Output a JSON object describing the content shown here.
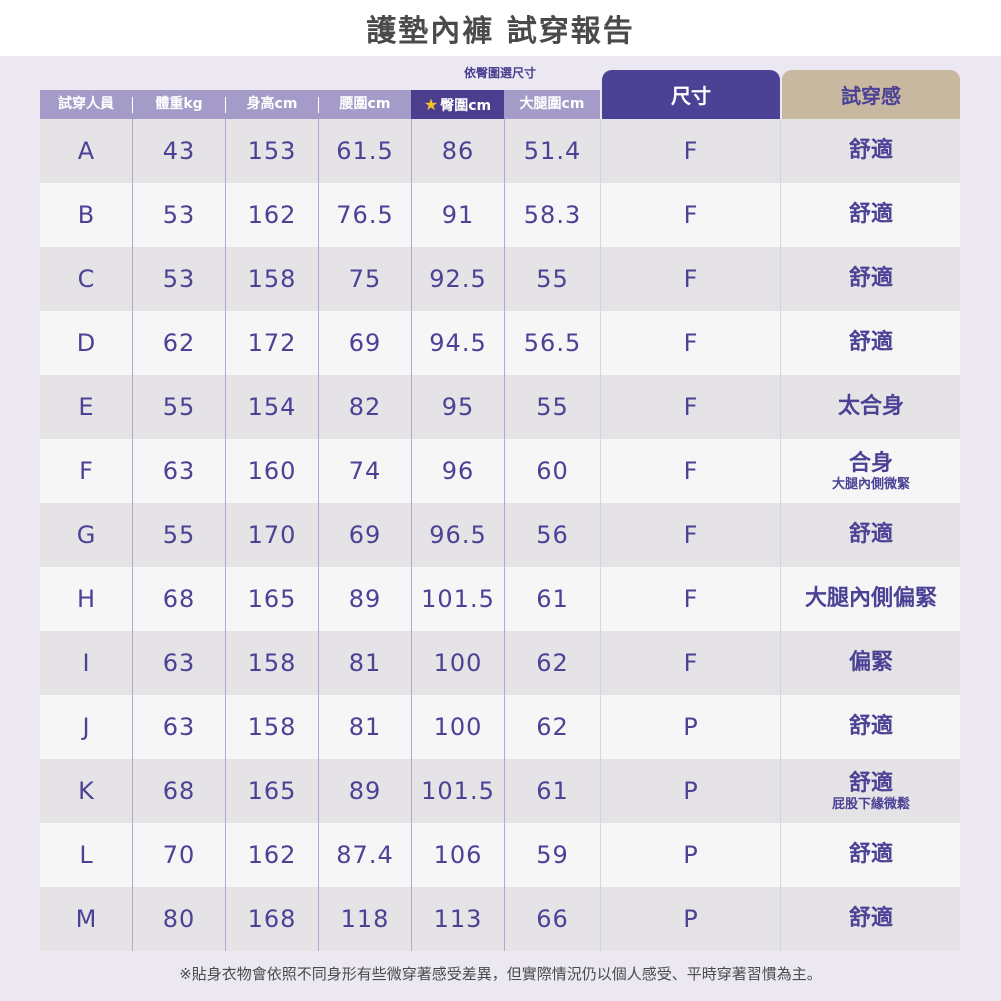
{
  "title": "護墊內褲 試穿報告",
  "header": {
    "note": "依臀圍選尺寸",
    "columns": [
      "試穿人員",
      "體重kg",
      "身高cm",
      "腰圍cm",
      "臀圍cm",
      "大腿圍cm"
    ],
    "size_label": "尺寸",
    "feel_label": "試穿感",
    "star_icon": "star-icon"
  },
  "rows": [
    {
      "id": "A",
      "weight": "43",
      "height": "153",
      "waist": "61.5",
      "hip": "86",
      "thigh": "51.4",
      "size": "F",
      "feel": "舒適",
      "note": ""
    },
    {
      "id": "B",
      "weight": "53",
      "height": "162",
      "waist": "76.5",
      "hip": "91",
      "thigh": "58.3",
      "size": "F",
      "feel": "舒適",
      "note": ""
    },
    {
      "id": "C",
      "weight": "53",
      "height": "158",
      "waist": "75",
      "hip": "92.5",
      "thigh": "55",
      "size": "F",
      "feel": "舒適",
      "note": ""
    },
    {
      "id": "D",
      "weight": "62",
      "height": "172",
      "waist": "69",
      "hip": "94.5",
      "thigh": "56.5",
      "size": "F",
      "feel": "舒適",
      "note": ""
    },
    {
      "id": "E",
      "weight": "55",
      "height": "154",
      "waist": "82",
      "hip": "95",
      "thigh": "55",
      "size": "F",
      "feel": "太合身",
      "note": ""
    },
    {
      "id": "F",
      "weight": "63",
      "height": "160",
      "waist": "74",
      "hip": "96",
      "thigh": "60",
      "size": "F",
      "feel": "合身",
      "note": "大腿內側微緊"
    },
    {
      "id": "G",
      "weight": "55",
      "height": "170",
      "waist": "69",
      "hip": "96.5",
      "thigh": "56",
      "size": "F",
      "feel": "舒適",
      "note": ""
    },
    {
      "id": "H",
      "weight": "68",
      "height": "165",
      "waist": "89",
      "hip": "101.5",
      "thigh": "61",
      "size": "F",
      "feel": "大腿內側偏緊",
      "note": ""
    },
    {
      "id": "I",
      "weight": "63",
      "height": "158",
      "waist": "81",
      "hip": "100",
      "thigh": "62",
      "size": "F",
      "feel": "偏緊",
      "note": ""
    },
    {
      "id": "J",
      "weight": "63",
      "height": "158",
      "waist": "81",
      "hip": "100",
      "thigh": "62",
      "size": "P",
      "feel": "舒適",
      "note": ""
    },
    {
      "id": "K",
      "weight": "68",
      "height": "165",
      "waist": "89",
      "hip": "101.5",
      "thigh": "61",
      "size": "P",
      "feel": "舒適",
      "note": "屁股下緣微鬆"
    },
    {
      "id": "L",
      "weight": "70",
      "height": "162",
      "waist": "87.4",
      "hip": "106",
      "thigh": "59",
      "size": "P",
      "feel": "舒適",
      "note": ""
    },
    {
      "id": "M",
      "weight": "80",
      "height": "168",
      "waist": "118",
      "hip": "113",
      "thigh": "66",
      "size": "P",
      "feel": "舒適",
      "note": ""
    }
  ],
  "footnote": "※貼身衣物會依照不同身形有些微穿著感受差異，但實際情況仍以個人感受、平時穿著習慣為主。",
  "colors": {
    "accent": "#4b4296",
    "header_light": "#a49bc9",
    "feel_header": "#c7b89f",
    "panel": "#ece8f1"
  }
}
